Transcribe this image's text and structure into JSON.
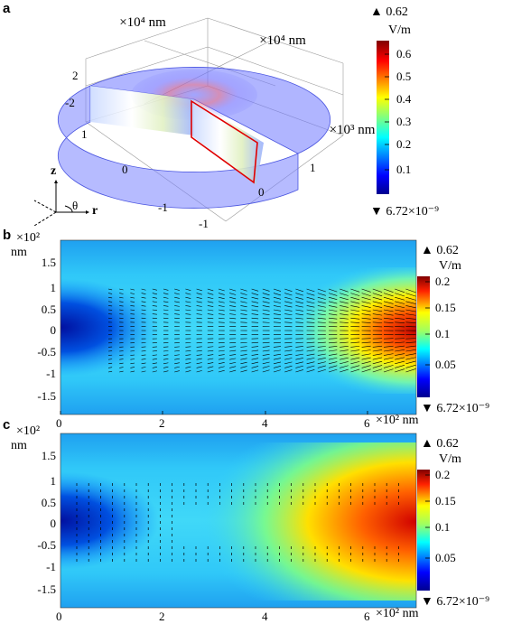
{
  "panels": {
    "a": {
      "label": "a",
      "axis_x_unit": "×10⁴ nm",
      "axis_y_unit": "×10⁴ nm",
      "axis_z_unit": "×10³ nm",
      "x_ticks": [
        "-1",
        "0",
        "1"
      ],
      "y_ticks": [
        "-1",
        "0",
        "1"
      ],
      "z_ticks": [
        "2",
        "-2"
      ],
      "coord_z": "z",
      "coord_r": "r",
      "coord_theta": "θ",
      "colorbar": {
        "max_label": "▲ 0.62",
        "unit": "V/m",
        "ticks": [
          "0.6",
          "0.5",
          "0.4",
          "0.3",
          "0.2",
          "0.1"
        ],
        "min_label": "▼ 6.72×10⁻⁹"
      }
    },
    "b": {
      "label": "b",
      "y_unit_exp": "×10²",
      "y_unit": "nm",
      "y_ticks": [
        "1.5",
        "1",
        "0.5",
        "0",
        "-0.5",
        "-1",
        "-1.5"
      ],
      "x_ticks": [
        "0",
        "2",
        "4",
        "6"
      ],
      "x_unit": "×10² nm",
      "colorbar": {
        "max_label": "▲ 0.62",
        "unit": "V/m",
        "ticks": [
          "0.2",
          "0.15",
          "0.1",
          "0.05"
        ],
        "min_label": "▼ 6.72×10⁻⁹"
      }
    },
    "c": {
      "label": "c",
      "y_unit_exp": "×10²",
      "y_unit": "nm",
      "y_ticks": [
        "1.5",
        "1",
        "0.5",
        "0",
        "-0.5",
        "-1",
        "-1.5"
      ],
      "x_ticks": [
        "0",
        "2",
        "4",
        "6"
      ],
      "x_unit": "×10² nm",
      "colorbar": {
        "max_label": "▲ 0.62",
        "unit": "V/m",
        "ticks": [
          "0.2",
          "0.15",
          "0.1",
          "0.05"
        ],
        "min_label": "▼ 6.72×10⁻⁹"
      }
    }
  }
}
